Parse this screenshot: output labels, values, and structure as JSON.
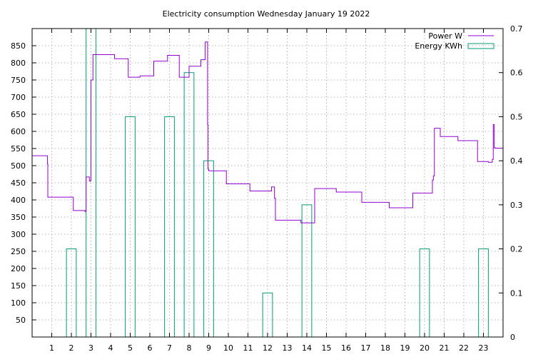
{
  "chart_data": {
    "type": "line",
    "title": "Electricity consumption Wednesday January 19 2022",
    "grid": true,
    "legend_position": "top-right",
    "x_axis": {
      "range": [
        0,
        24
      ],
      "ticks": [
        1,
        2,
        3,
        4,
        5,
        6,
        7,
        8,
        9,
        10,
        11,
        12,
        13,
        14,
        15,
        16,
        17,
        18,
        19,
        20,
        21,
        22,
        23
      ]
    },
    "y_axis_left": {
      "range": [
        0,
        900
      ],
      "ticks": [
        50,
        100,
        150,
        200,
        250,
        300,
        350,
        400,
        450,
        500,
        550,
        600,
        650,
        700,
        750,
        800,
        850
      ]
    },
    "y_axis_right": {
      "range": [
        0,
        0.7
      ],
      "ticks": [
        "0",
        "0.1",
        "0.2",
        "0.3",
        "0.4",
        "0.5",
        "0.6",
        "0.7"
      ]
    },
    "series": [
      {
        "name": "Power W",
        "axis": "left",
        "color": "#9400d3",
        "style": "steps",
        "x": [
          0,
          0.78,
          0.8,
          2.1,
          2.7,
          2.75,
          2.92,
          3.0,
          3.1,
          3.3,
          4.2,
          4.9,
          5.5,
          6.2,
          6.9,
          7.5,
          8.0,
          8.6,
          8.82,
          8.92,
          8.94,
          8.96,
          9.0,
          9.9,
          11.1,
          12.2,
          12.35,
          12.4,
          13.7,
          14.4,
          15.5,
          16.8,
          18.2,
          19.4,
          20.4,
          20.45,
          20.5,
          20.8,
          21.7,
          22.7,
          23.25,
          23.45,
          23.5,
          23.55,
          23.6,
          24.0
        ],
        "y": [
          529,
          505,
          408,
          369,
          366,
          467,
          455,
          750,
          824,
          824,
          812,
          758,
          762,
          805,
          822,
          758,
          790,
          809,
          861,
          860,
          620,
          490,
          485,
          447,
          426,
          438,
          405,
          341,
          333,
          433,
          423,
          393,
          377,
          420,
          458,
          470,
          609,
          585,
          573,
          512,
          510,
          518,
          620,
          552,
          551,
          550
        ]
      },
      {
        "name": "Energy KWh",
        "axis": "right",
        "color": "#009e73",
        "style": "bars",
        "x": [
          1,
          2,
          3,
          4,
          5,
          6,
          7,
          8,
          9,
          10,
          11,
          12,
          13,
          14,
          15,
          16,
          17,
          18,
          19,
          20,
          21,
          22,
          23
        ],
        "values": [
          0,
          0.2,
          0.7,
          0,
          0.5,
          0,
          0.5,
          0.6,
          0.4,
          0,
          0,
          0.1,
          0,
          0.3,
          0,
          0,
          0,
          0,
          0,
          0.2,
          0,
          0,
          0.2
        ]
      }
    ]
  }
}
